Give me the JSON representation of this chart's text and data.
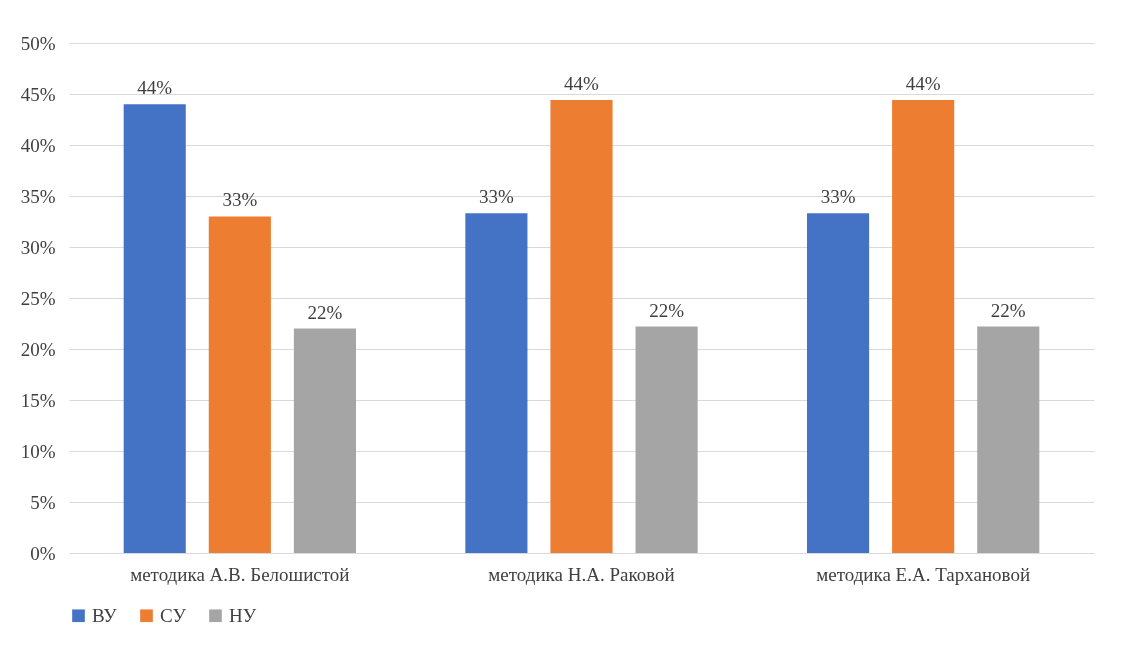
{
  "chart_data": {
    "type": "bar",
    "categories": [
      "методика А.В. Белошистой",
      "методика Н.А. Раковой",
      "методика Е.А. Тархановой"
    ],
    "series": [
      {
        "name": "ВУ",
        "color": "#4472c4",
        "values": [
          44,
          33.3,
          33.3
        ],
        "value_labels": [
          "44%",
          "33%",
          "33%"
        ]
      },
      {
        "name": "СУ",
        "color": "#ed7d31",
        "values": [
          33,
          44.4,
          44.4
        ],
        "value_labels": [
          "33%",
          "44%",
          "44%"
        ]
      },
      {
        "name": "НУ",
        "color": "#a5a5a5",
        "values": [
          22,
          22.2,
          22.2
        ],
        "value_labels": [
          "22%",
          "22%",
          "22%"
        ]
      }
    ],
    "ylim": [
      0,
      50
    ],
    "yticks": [
      {
        "value": 0,
        "label": "0%"
      },
      {
        "value": 5,
        "label": "5%"
      },
      {
        "value": 10,
        "label": "10%"
      },
      {
        "value": 15,
        "label": "15%"
      },
      {
        "value": 20,
        "label": "20%"
      },
      {
        "value": 25,
        "label": "25%"
      },
      {
        "value": 30,
        "label": "30%"
      },
      {
        "value": 35,
        "label": "35%"
      },
      {
        "value": 40,
        "label": "40%"
      },
      {
        "value": 45,
        "label": "45%"
      },
      {
        "value": 50,
        "label": "50%"
      }
    ],
    "grid": "y",
    "legend": "bottom"
  }
}
